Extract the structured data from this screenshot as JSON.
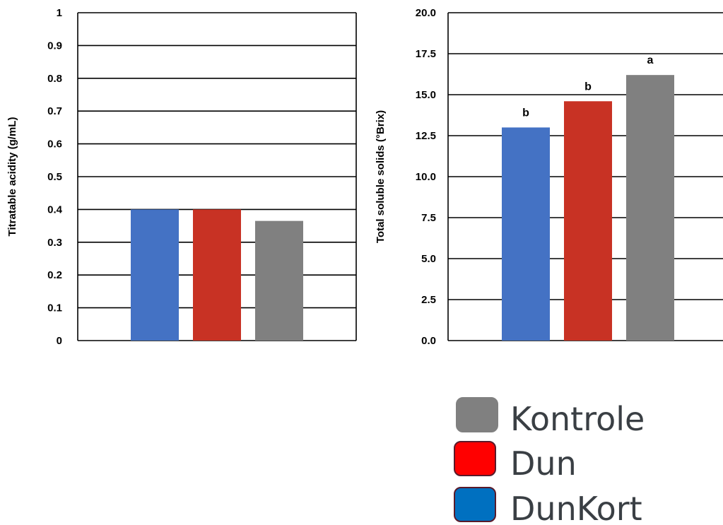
{
  "chart_data": [
    {
      "type": "bar",
      "ylabel": "Titratable acidity (g/mL)",
      "ylim": [
        0,
        1
      ],
      "yticks": [
        "0",
        "0.1",
        "0.2",
        "0.3",
        "0.4",
        "0.5",
        "0.6",
        "0.7",
        "0.8",
        "0.9",
        "1"
      ],
      "grid": true,
      "series": [
        {
          "name": "DunKort",
          "color": "#4472c4",
          "values": [
            0.4
          ]
        },
        {
          "name": "Dun",
          "color": "#c83224",
          "values": [
            0.4
          ]
        },
        {
          "name": "Kontrole",
          "color": "#808080",
          "values": [
            0.365
          ]
        }
      ],
      "annotations": []
    },
    {
      "type": "bar",
      "ylabel": "Total soluble solids (°Brix)",
      "ylim": [
        0,
        20
      ],
      "yticks": [
        "0.0",
        "2.5",
        "5.0",
        "7.5",
        "10.0",
        "12.5",
        "15.0",
        "17.5",
        "20.0"
      ],
      "grid": true,
      "series": [
        {
          "name": "DunKort",
          "color": "#4472c4",
          "values": [
            13.0
          ]
        },
        {
          "name": "Dun",
          "color": "#c83224",
          "values": [
            14.6
          ]
        },
        {
          "name": "Kontrole",
          "color": "#808080",
          "values": [
            16.2
          ]
        }
      ],
      "annotations": [
        "b",
        "b",
        "a"
      ]
    }
  ],
  "legend": {
    "placement": "bottom-right",
    "items": [
      {
        "label": "Kontrole",
        "color": "#808080",
        "border": "#808080"
      },
      {
        "label": "Dun",
        "color": "#ff0000",
        "border": "#5a1a2a"
      },
      {
        "label": "DunKort",
        "color": "#0070c0",
        "border": "#5a1a2a"
      }
    ]
  }
}
